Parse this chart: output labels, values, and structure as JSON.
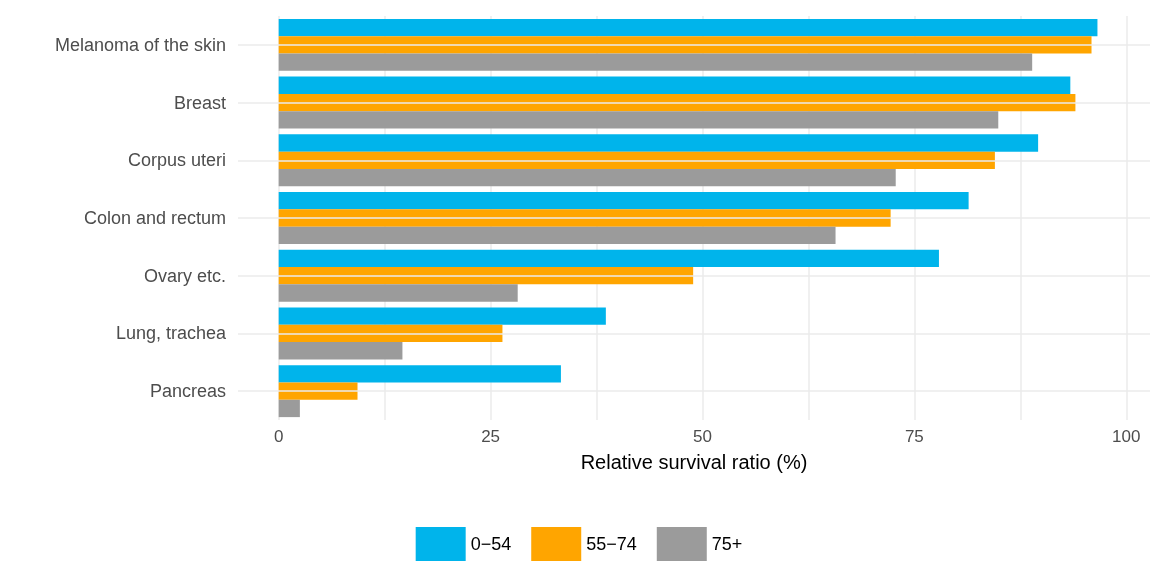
{
  "chart_data": {
    "type": "bar",
    "orientation": "horizontal",
    "xlabel": "Relative survival ratio (%)",
    "categories": [
      "Melanoma of the skin",
      "Breast",
      "Corpus uteri",
      "Colon and rectum",
      "Ovary etc.",
      "Lung, trachea",
      "Pancreas"
    ],
    "series": [
      {
        "name": "0−54",
        "color": "#00b4eb",
        "values": [
          96.6,
          93.4,
          89.6,
          81.4,
          77.9,
          38.6,
          33.3
        ]
      },
      {
        "name": "55−74",
        "color": "#ffa500",
        "values": [
          95.9,
          94.0,
          84.5,
          72.2,
          48.9,
          26.4,
          9.3
        ]
      },
      {
        "name": "75+",
        "color": "#9b9b9b",
        "values": [
          88.9,
          84.9,
          72.8,
          65.7,
          28.2,
          14.6,
          2.5
        ]
      }
    ],
    "xlim": [
      -4.8,
      102.8
    ],
    "xticks": [
      0,
      {
        "value": 12.5,
        "label": null
      },
      25,
      {
        "value": 37.5,
        "label": null
      },
      50,
      {
        "value": 62.5,
        "label": null
      },
      75,
      {
        "value": 87.5,
        "label": null
      },
      100
    ],
    "grid": true,
    "legend": "bottom"
  }
}
